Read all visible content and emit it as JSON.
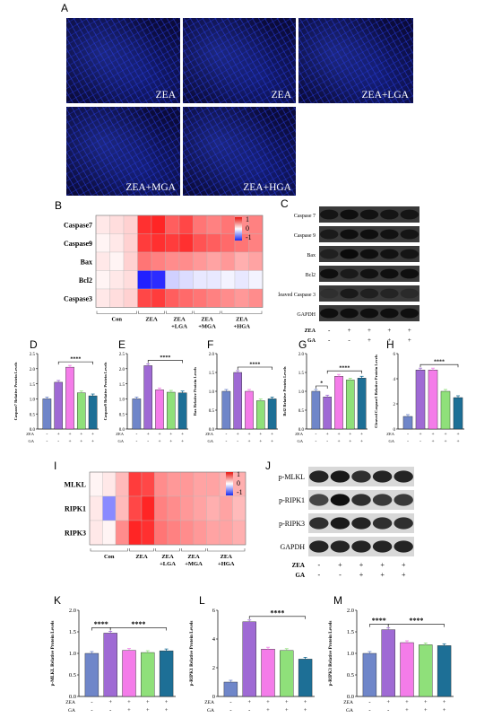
{
  "panel_letters": {
    "A": "A",
    "B": "B",
    "C": "C",
    "D": "D",
    "E": "E",
    "F": "F",
    "G": "G",
    "H": "H",
    "I": "I",
    "J": "J",
    "K": "K",
    "L": "L",
    "M": "M"
  },
  "micro_labels": [
    "ZEA",
    "ZEA",
    "ZEA+LGA",
    "ZEA+MGA",
    "ZEA+HGA"
  ],
  "heatmap_B": {
    "rows": [
      "Caspase7",
      "Caspase9",
      "Bax",
      "Bcl2",
      "Caspase3"
    ],
    "groups": [
      "Con",
      "ZEA",
      "ZEA\n+LGA",
      "ZEA\n+MGA",
      "ZEA\n+HGA"
    ],
    "legend_ticks": [
      "1",
      "0",
      "-1"
    ],
    "values": [
      [
        0.1,
        0.15,
        0.2,
        0.9,
        0.95,
        0.7,
        0.8,
        0.6,
        0.55,
        0.6,
        0.5,
        0.55
      ],
      [
        0.05,
        0.1,
        0.2,
        0.85,
        0.9,
        0.85,
        0.9,
        0.75,
        0.7,
        0.65,
        0.6,
        0.55
      ],
      [
        0.1,
        0.05,
        0.2,
        0.6,
        0.55,
        0.5,
        0.5,
        0.45,
        0.4,
        0.45,
        0.35,
        0.4
      ],
      [
        0.05,
        0.1,
        0.15,
        -0.95,
        -0.9,
        -0.2,
        -0.15,
        -0.1,
        -0.1,
        -0.05,
        -0.1,
        -0.05
      ],
      [
        0.1,
        0.15,
        0.2,
        0.8,
        0.85,
        0.7,
        0.65,
        0.6,
        0.55,
        0.5,
        0.45,
        0.5
      ]
    ]
  },
  "heatmap_I": {
    "rows": [
      "MLKL",
      "RIPK1",
      "RIPK3"
    ],
    "groups": [
      "Con",
      "ZEA",
      "ZEA\n+LGA",
      "ZEA\n+MGA",
      "ZEA\n+HGA"
    ],
    "legend_ticks": [
      "1",
      "0",
      "-1"
    ],
    "values": [
      [
        0.05,
        0.1,
        0.3,
        0.85,
        0.8,
        0.5,
        0.45,
        0.45,
        0.4,
        0.4,
        0.35,
        0.35
      ],
      [
        0.1,
        -0.5,
        0.3,
        0.8,
        0.95,
        0.55,
        0.5,
        0.45,
        0.4,
        0.35,
        0.4,
        0.3
      ],
      [
        0.1,
        0.05,
        0.5,
        0.95,
        0.9,
        0.6,
        0.55,
        0.5,
        0.45,
        0.4,
        0.4,
        0.35
      ]
    ]
  },
  "blot_C": {
    "labels": [
      "Caspase 7",
      "Caspase 9",
      "Bax",
      "Bcl2",
      "Cleaved Caspase 3",
      "GAPDH"
    ],
    "zea_label": "ZEA",
    "ga_label": "GA",
    "zea_signs": [
      "-",
      "+",
      "+",
      "+",
      "+"
    ],
    "ga_signs": [
      "-",
      "-",
      "+",
      "+",
      "+"
    ]
  },
  "blot_J": {
    "labels": [
      "p-MLKL",
      "p-RIPK1",
      "p-RIPK3",
      "GAPDH"
    ],
    "zea_label": "ZEA",
    "ga_label": "GA",
    "zea_signs": [
      "-",
      "+",
      "+",
      "+",
      "+"
    ],
    "ga_signs": [
      "-",
      "-",
      "+",
      "+",
      "+"
    ]
  },
  "bar_colors": [
    "#6f86c9",
    "#9f6ad4",
    "#f47ce9",
    "#8fe07a",
    "#1d6f96"
  ],
  "chart_data": [
    {
      "type": "bar",
      "panel": "D",
      "ylabel": "Caspase7 Relative Protein Levels",
      "ylim": [
        0,
        2.5
      ],
      "yticks": [
        "0.0",
        "0.5",
        "1.0",
        "1.5",
        "2.0",
        "2.5"
      ],
      "values": [
        1.0,
        1.55,
        2.05,
        1.2,
        1.1
      ],
      "sig": [
        {
          "from": 1,
          "to": 4,
          "label": "****"
        }
      ]
    },
    {
      "type": "bar",
      "panel": "E",
      "ylabel": "Caspase9 Relative Protein Levels",
      "ylim": [
        0,
        2.5
      ],
      "yticks": [
        "0.0",
        "0.5",
        "1.0",
        "1.5",
        "2.0",
        "2.5"
      ],
      "values": [
        1.0,
        2.1,
        1.3,
        1.22,
        1.2
      ],
      "sig": [
        {
          "from": 1,
          "to": 4,
          "label": "****"
        }
      ]
    },
    {
      "type": "bar",
      "panel": "F",
      "ylabel": "Bax Relative Protein Levels",
      "ylim": [
        0,
        2.0
      ],
      "yticks": [
        "0.0",
        "0.5",
        "1.0",
        "1.5",
        "2.0"
      ],
      "values": [
        1.0,
        1.5,
        1.0,
        0.75,
        0.8
      ],
      "sig": [
        {
          "from": 1,
          "to": 4,
          "label": "****"
        }
      ]
    },
    {
      "type": "bar",
      "panel": "G",
      "ylabel": "Bcl2 Relative Protein Levels",
      "ylim": [
        0,
        2.0
      ],
      "yticks": [
        "0.0",
        "0.5",
        "1.0",
        "1.5",
        "2.0"
      ],
      "values": [
        1.0,
        0.85,
        1.4,
        1.3,
        1.35
      ],
      "sig": [
        {
          "from": 0,
          "to": 1,
          "label": "*"
        },
        {
          "from": 1,
          "to": 4,
          "label": "****"
        }
      ]
    },
    {
      "type": "bar",
      "panel": "H",
      "ylabel": "Cleaved Caspase3 Relative Protein Levels",
      "ylim": [
        0,
        6
      ],
      "yticks": [
        "0",
        "2",
        "4",
        "6"
      ],
      "values": [
        1.0,
        4.7,
        4.7,
        3.0,
        2.5
      ],
      "sig": [
        {
          "from": 1,
          "to": 4,
          "label": "****"
        }
      ]
    },
    {
      "type": "bar",
      "panel": "K",
      "ylabel": "p-MLKL Relative Protein Levels",
      "ylim": [
        0,
        2.0
      ],
      "yticks": [
        "0.0",
        "0.5",
        "1.0",
        "1.5",
        "2.0"
      ],
      "values": [
        1.0,
        1.47,
        1.07,
        1.02,
        1.06
      ],
      "sig": [
        {
          "from": 0,
          "to": 1,
          "label": "****"
        },
        {
          "from": 1,
          "to": 4,
          "label": "****"
        }
      ]
    },
    {
      "type": "bar",
      "panel": "L",
      "ylabel": "p-RIPK1 Relative Protein Levels",
      "ylim": [
        0,
        6
      ],
      "yticks": [
        "0",
        "2",
        "4",
        "6"
      ],
      "values": [
        1.0,
        5.2,
        3.3,
        3.2,
        2.6
      ],
      "sig": [
        {
          "from": 1,
          "to": 4,
          "label": "****"
        }
      ]
    },
    {
      "type": "bar",
      "panel": "M",
      "ylabel": "p-RIPK3 Relative Protein Levels",
      "ylim": [
        0,
        2.0
      ],
      "yticks": [
        "0.0",
        "0.5",
        "1.0",
        "1.5",
        "2.0"
      ],
      "values": [
        1.0,
        1.55,
        1.25,
        1.2,
        1.18
      ],
      "sig": [
        {
          "from": 0,
          "to": 1,
          "label": "****"
        },
        {
          "from": 1,
          "to": 4,
          "label": "****"
        }
      ]
    }
  ],
  "x_labels": {
    "zea": "ZEA",
    "ga": "GA",
    "zea_signs": [
      "-",
      "+",
      "+",
      "+",
      "+"
    ],
    "ga_signs": [
      "-",
      "-",
      "+",
      "+",
      "+"
    ]
  }
}
